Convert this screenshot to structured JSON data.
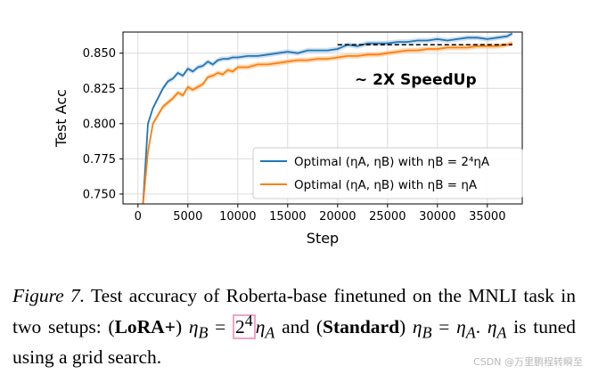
{
  "chart_data": {
    "type": "line",
    "xlabel": "Step",
    "ylabel": "Test Acc",
    "xlim": [
      -1500,
      38500
    ],
    "ylim": [
      0.743,
      0.865
    ],
    "xticks": [
      0,
      5000,
      10000,
      15000,
      20000,
      25000,
      30000,
      35000
    ],
    "yticks": [
      0.75,
      0.775,
      0.8,
      0.825,
      0.85
    ],
    "xtick_labels": [
      "0",
      "5000",
      "10000",
      "15000",
      "20000",
      "25000",
      "30000",
      "35000"
    ],
    "ytick_labels": [
      "0.750",
      "0.775",
      "0.800",
      "0.825",
      "0.850"
    ],
    "grid": true,
    "legend_position": "lower-right",
    "annotation": "~ 2X SpeedUp",
    "reference_line": {
      "y": 0.856,
      "x_range": [
        20000,
        37500
      ],
      "style": "dashed",
      "color": "#000000"
    },
    "series": [
      {
        "name": "Optimal (ηA, ηB) with ηB = 2⁴ηA",
        "color": "#1f77b4",
        "band_color": "#aec7e8",
        "x": [
          500,
          1000,
          1500,
          2000,
          2500,
          3000,
          3500,
          4000,
          4500,
          5000,
          5500,
          6000,
          6500,
          7000,
          7500,
          8000,
          8500,
          9000,
          9500,
          10000,
          11000,
          12000,
          13000,
          14000,
          15000,
          16000,
          17000,
          18000,
          19000,
          20000,
          21000,
          22000,
          23000,
          24000,
          25000,
          26000,
          27000,
          28000,
          29000,
          30000,
          31000,
          32000,
          33000,
          34000,
          35000,
          36000,
          37000,
          37500
        ],
        "y": [
          0.742,
          0.8,
          0.811,
          0.818,
          0.825,
          0.83,
          0.832,
          0.836,
          0.834,
          0.839,
          0.837,
          0.84,
          0.841,
          0.844,
          0.842,
          0.845,
          0.846,
          0.846,
          0.847,
          0.847,
          0.848,
          0.848,
          0.849,
          0.85,
          0.851,
          0.85,
          0.852,
          0.852,
          0.852,
          0.853,
          0.856,
          0.855,
          0.857,
          0.857,
          0.857,
          0.858,
          0.858,
          0.859,
          0.859,
          0.86,
          0.859,
          0.86,
          0.861,
          0.861,
          0.86,
          0.861,
          0.862,
          0.864
        ]
      },
      {
        "name": "Optimal (ηA, ηB) with ηB = ηA",
        "color": "#ff7f0e",
        "band_color": "#ffbb78",
        "x": [
          500,
          1000,
          1500,
          2000,
          2500,
          3000,
          3500,
          4000,
          4500,
          5000,
          5500,
          6000,
          6500,
          7000,
          7500,
          8000,
          8500,
          9000,
          9500,
          10000,
          11000,
          12000,
          13000,
          14000,
          15000,
          16000,
          17000,
          18000,
          19000,
          20000,
          21000,
          22000,
          23000,
          24000,
          25000,
          26000,
          27000,
          28000,
          29000,
          30000,
          31000,
          32000,
          33000,
          34000,
          35000,
          36000,
          37000,
          37500
        ],
        "y": [
          0.742,
          0.78,
          0.8,
          0.806,
          0.812,
          0.815,
          0.818,
          0.822,
          0.82,
          0.826,
          0.824,
          0.826,
          0.828,
          0.833,
          0.834,
          0.836,
          0.835,
          0.838,
          0.837,
          0.84,
          0.84,
          0.842,
          0.842,
          0.843,
          0.844,
          0.845,
          0.845,
          0.846,
          0.846,
          0.847,
          0.848,
          0.848,
          0.849,
          0.849,
          0.85,
          0.851,
          0.852,
          0.852,
          0.853,
          0.853,
          0.854,
          0.854,
          0.854,
          0.855,
          0.855,
          0.855,
          0.856,
          0.857
        ]
      }
    ]
  },
  "caption": {
    "figure_label": "Figure 7.",
    "t1": " Test accuracy of Roberta-base finetuned on the MNLI task in two setups: (",
    "lora": "LoRA+",
    "t2": ") ",
    "eq1_lhs": "η",
    "eq1_lhs_sub": "B",
    "eq1_eq": " = ",
    "eq1_base": "2",
    "eq1_exp": "4",
    "eq1_rhs": "η",
    "eq1_rhs_sub": "A",
    "t3": " and (",
    "standard": "Standard",
    "t4": ") ",
    "eq2_lhs": "η",
    "eq2_lhs_sub": "B",
    "eq2_eq": " = ",
    "eq2_rhs": "η",
    "eq2_rhs_sub": "A",
    "t5": ". ",
    "eta_a": "η",
    "eta_a_sub": "A",
    "t6": " is tuned using a grid search."
  },
  "watermark": "CSDN @万里鹏程转瞬至"
}
